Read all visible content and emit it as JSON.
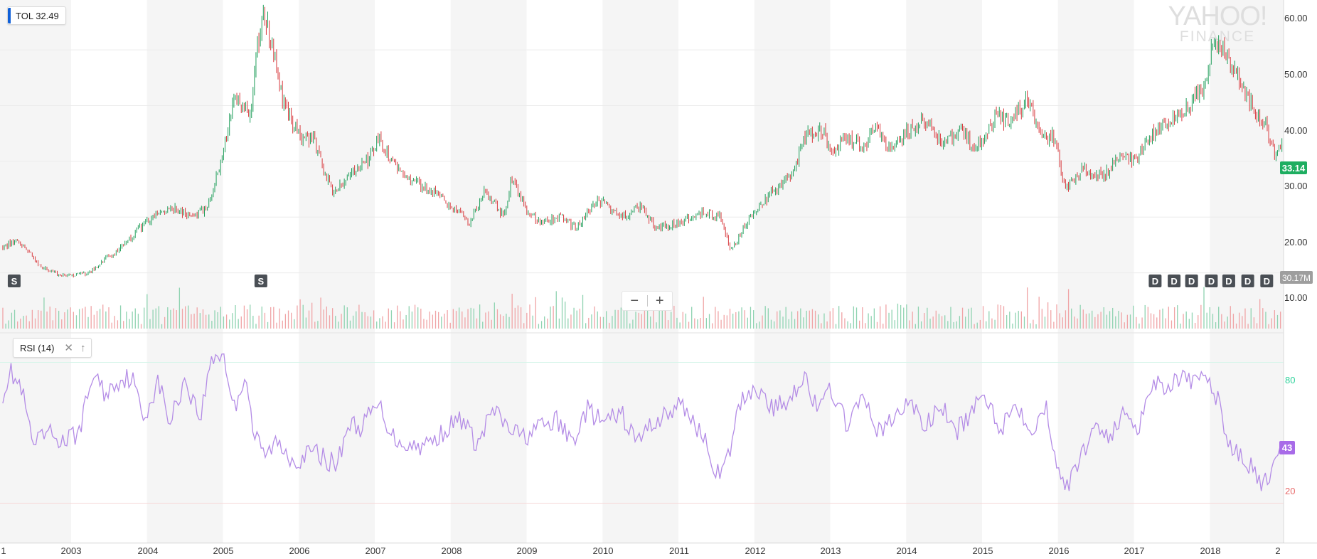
{
  "header": {
    "ticker": "TOL",
    "legend_price": "32.49",
    "last_price_badge": "33.14",
    "volume_badge": "30.17M",
    "logo_line1": "YAHOO!",
    "logo_line2": "FINANCE"
  },
  "zoom": {
    "minus_label": "−",
    "plus_label": "+"
  },
  "rsi_panel": {
    "label": "RSI (14)",
    "close_icon": "close-icon",
    "collapse_icon": "arrow-up-icon",
    "current_badge": "43",
    "upper_level_label": "80",
    "lower_level_label": "20"
  },
  "colors": {
    "up": "#1f9e5a",
    "down": "#d8393d",
    "volume_up": "#8fd3b1",
    "volume_down": "#f0a4a6",
    "rsi_line": "#b48ce6",
    "rsi_badge": "#a86be8",
    "price_badge": "#1eae61",
    "volume_badge": "#9e9e9e",
    "year_band": "#f5f5f5",
    "upper_level": "#2ed29b",
    "lower_level": "#e86b6b",
    "event_marker": "#4a4f55"
  },
  "chart_data": [
    {
      "type": "candlestick",
      "series_label": "TOL",
      "x_tick_labels": [
        "1",
        "2003",
        "2004",
        "2005",
        "2006",
        "2007",
        "2008",
        "2009",
        "2010",
        "2011",
        "2012",
        "2013",
        "2014",
        "2015",
        "2016",
        "2017",
        "2018",
        "2"
      ],
      "y_tick_labels": [
        "10.00",
        "20.00",
        "30.00",
        "40.00",
        "50.00",
        "60.00"
      ],
      "ylim": [
        4.6,
        63.4
      ],
      "x_range_years": [
        2002.1,
        2018.95
      ],
      "price_anchors": {
        "x": [
          2002.1,
          2002.3,
          2002.6,
          2002.9,
          2003.2,
          2003.6,
          2003.9,
          2004.3,
          2004.6,
          2004.8,
          2004.95,
          2005.15,
          2005.35,
          2005.45,
          2005.55,
          2005.8,
          2006.0,
          2006.2,
          2006.45,
          2006.6,
          2006.9,
          2007.05,
          2007.3,
          2007.6,
          2007.9,
          2008.1,
          2008.25,
          2008.45,
          2008.7,
          2008.8,
          2009.0,
          2009.2,
          2009.45,
          2009.65,
          2009.95,
          2010.25,
          2010.5,
          2010.7,
          2011.0,
          2011.35,
          2011.55,
          2011.7,
          2011.9,
          2012.2,
          2012.45,
          2012.7,
          2012.9,
          2013.0,
          2013.2,
          2013.45,
          2013.6,
          2013.8,
          2014.0,
          2014.2,
          2014.5,
          2014.7,
          2014.9,
          2015.2,
          2015.35,
          2015.6,
          2015.75,
          2015.95,
          2016.1,
          2016.35,
          2016.6,
          2016.8,
          2017.0,
          2017.25,
          2017.55,
          2017.75,
          2017.95,
          2018.05,
          2018.3,
          2018.55,
          2018.75,
          2018.85,
          2018.95
        ],
        "y": [
          14.5,
          16,
          11,
          9.5,
          9.8,
          14,
          18,
          22,
          20,
          22,
          29,
          42,
          38,
          50,
          57,
          40,
          35,
          34,
          24,
          27,
          30,
          34,
          28,
          26,
          23,
          21,
          19,
          25,
          20,
          27,
          21,
          19,
          20,
          18,
          23,
          20,
          22,
          18,
          19,
          21,
          20,
          14,
          19,
          24,
          27,
          35,
          36,
          32,
          34,
          33,
          36,
          32,
          35,
          38,
          33,
          36,
          32,
          38,
          37,
          41,
          36,
          34,
          25,
          29,
          27,
          31,
          30,
          35,
          38,
          40,
          45,
          52,
          47,
          40,
          36,
          31,
          33
        ]
      },
      "volume_ylim_millions": [
        0,
        100
      ],
      "event_markers": [
        {
          "label": "S",
          "year": 2002.25
        },
        {
          "label": "S",
          "year": 2005.5
        },
        {
          "label": "D",
          "year": 2017.28
        },
        {
          "label": "D",
          "year": 2017.53
        },
        {
          "label": "D",
          "year": 2017.76
        },
        {
          "label": "D",
          "year": 2018.02
        },
        {
          "label": "D",
          "year": 2018.25
        },
        {
          "label": "D",
          "year": 2018.5
        },
        {
          "label": "D",
          "year": 2018.75
        }
      ]
    },
    {
      "type": "line",
      "series_label": "RSI (14)",
      "ylim": [
        0,
        110
      ],
      "upper_level": 80,
      "lower_level": 20,
      "rsi_anchors": {
        "x": [
          2002.1,
          2002.2,
          2002.35,
          2002.5,
          2002.7,
          2002.9,
          2003.1,
          2003.3,
          2003.45,
          2003.6,
          2003.8,
          2003.95,
          2004.15,
          2004.3,
          2004.5,
          2004.7,
          2004.85,
          2005.0,
          2005.15,
          2005.3,
          2005.4,
          2005.55,
          2005.7,
          2005.95,
          2006.2,
          2006.5,
          2006.65,
          2006.8,
          2007.05,
          2007.25,
          2007.5,
          2007.75,
          2007.95,
          2008.15,
          2008.35,
          2008.55,
          2008.75,
          2008.95,
          2009.15,
          2009.4,
          2009.6,
          2009.8,
          2010.0,
          2010.25,
          2010.45,
          2010.65,
          2010.85,
          2011.05,
          2011.3,
          2011.55,
          2011.68,
          2011.8,
          2012.0,
          2012.25,
          2012.45,
          2012.65,
          2012.85,
          2013.0,
          2013.2,
          2013.45,
          2013.65,
          2013.9,
          2014.05,
          2014.25,
          2014.45,
          2014.65,
          2014.85,
          2015.05,
          2015.25,
          2015.45,
          2015.65,
          2015.85,
          2016.0,
          2016.12,
          2016.3,
          2016.5,
          2016.7,
          2016.9,
          2017.05,
          2017.25,
          2017.45,
          2017.6,
          2017.8,
          2017.95,
          2018.1,
          2018.3,
          2018.5,
          2018.65,
          2018.8,
          2018.95
        ],
        "y": [
          67,
          76,
          68,
          44,
          50,
          46,
          50,
          76,
          66,
          72,
          74,
          56,
          72,
          54,
          73,
          56,
          82,
          84,
          60,
          76,
          50,
          40,
          46,
          38,
          42,
          36,
          54,
          52,
          62,
          48,
          44,
          46,
          52,
          56,
          44,
          60,
          52,
          48,
          52,
          55,
          46,
          60,
          54,
          58,
          46,
          54,
          58,
          62,
          50,
          30,
          42,
          62,
          70,
          60,
          64,
          75,
          58,
          70,
          54,
          64,
          50,
          58,
          64,
          52,
          62,
          50,
          58,
          66,
          52,
          63,
          52,
          60,
          36,
          26,
          40,
          54,
          48,
          60,
          52,
          72,
          70,
          74,
          70,
          76,
          64,
          42,
          38,
          28,
          30,
          43
        ]
      }
    }
  ]
}
